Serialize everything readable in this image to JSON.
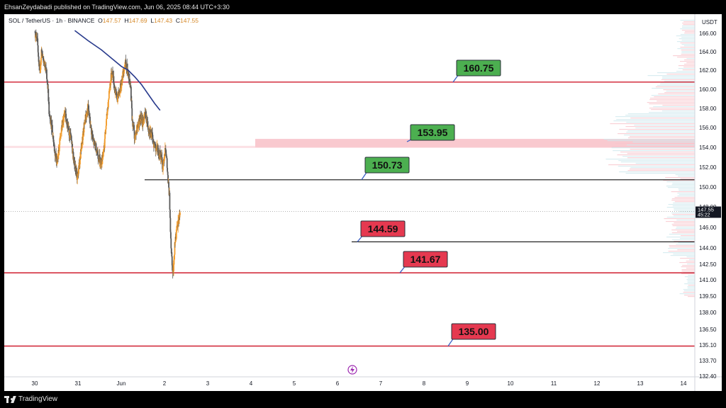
{
  "header": {
    "publish_line": "EhsanZeydabadi published on TradingView.com, Jun 06, 2025 08:44 UTC+3:30"
  },
  "legend": {
    "symbol": "SOL / TetherUS · 1h · BINANCE",
    "o_key": "O",
    "o": "147.57",
    "h_key": "H",
    "h": "147.69",
    "l_key": "L",
    "l": "147.43",
    "c_key": "C",
    "c": "147.55"
  },
  "footer": {
    "brand": "TradingView"
  },
  "colors": {
    "bull": "#f39c2b",
    "bear": "#5a5a5a",
    "ma": "#283a8c",
    "support_red": "#d32f3f",
    "zone": "#f9c9cf",
    "green_box": "#4caf50",
    "red_box": "#e53950"
  },
  "chart_data": {
    "type": "candlestick",
    "symbol": "SOL / TetherUS",
    "interval": "1h",
    "exchange": "BINANCE",
    "price_unit": "USDT",
    "x_tick_labels": [
      "30",
      "31",
      "Jun",
      "2",
      "3",
      "4",
      "5",
      "6",
      "7",
      "8",
      "9",
      "10",
      "11",
      "12",
      "13",
      "14"
    ],
    "y_tick_labels": [
      "166.00",
      "164.00",
      "162.00",
      "160.00",
      "158.00",
      "156.00",
      "154.00",
      "152.00",
      "150.00",
      "148.00",
      "146.00",
      "144.00",
      "142.50",
      "141.00",
      "139.50",
      "138.00",
      "136.50",
      "135.10",
      "133.70",
      "132.40"
    ],
    "y_range": [
      132.4,
      167.0
    ],
    "x_range_days": [
      "May 30",
      "Jun 14"
    ],
    "last_price": "147.55",
    "countdown": "45:22",
    "levels": [
      {
        "label": "160.75",
        "value": 160.75,
        "kind": "resistance",
        "line": "red"
      },
      {
        "label": "153.95",
        "value": 153.95,
        "kind": "resistance-zone",
        "line": "zone"
      },
      {
        "label": "150.73",
        "value": 150.73,
        "kind": "resistance",
        "line": "black"
      },
      {
        "label": "144.59",
        "value": 144.59,
        "kind": "support",
        "line": "black"
      },
      {
        "label": "141.67",
        "value": 141.67,
        "kind": "support",
        "line": "red"
      },
      {
        "label": "135.00",
        "value": 135.0,
        "kind": "support",
        "line": "red"
      }
    ],
    "price_path_approx": [
      [
        0,
        166.2
      ],
      [
        2,
        165.0
      ],
      [
        4,
        161.5
      ],
      [
        5,
        164.2
      ],
      [
        7,
        163.0
      ],
      [
        9,
        161.5
      ],
      [
        10,
        159.8
      ],
      [
        11,
        157.0
      ],
      [
        13,
        156.0
      ],
      [
        15,
        153.5
      ],
      [
        17,
        152.5
      ],
      [
        19,
        154.8
      ],
      [
        21,
        156.5
      ],
      [
        23,
        157.5
      ],
      [
        25,
        156.0
      ],
      [
        27,
        155.0
      ],
      [
        29,
        153.0
      ],
      [
        31,
        151.5
      ],
      [
        32,
        150.8
      ],
      [
        34,
        153.0
      ],
      [
        36,
        155.0
      ],
      [
        38,
        157.0
      ],
      [
        40,
        158.0
      ],
      [
        42,
        156.0
      ],
      [
        44,
        154.5
      ],
      [
        46,
        154.0
      ],
      [
        48,
        153.0
      ],
      [
        50,
        152.5
      ],
      [
        52,
        154.0
      ],
      [
        54,
        157.0
      ],
      [
        56,
        160.0
      ],
      [
        58,
        162.0
      ],
      [
        60,
        160.0
      ],
      [
        62,
        159.0
      ],
      [
        64,
        160.0
      ],
      [
        66,
        161.5
      ],
      [
        68,
        163.0
      ],
      [
        70,
        161.5
      ],
      [
        72,
        160.0
      ],
      [
        73,
        157.0
      ],
      [
        75,
        155.0
      ],
      [
        77,
        156.0
      ],
      [
        79,
        157.0
      ],
      [
        81,
        156.5
      ],
      [
        83,
        157.5
      ],
      [
        85,
        156.0
      ],
      [
        87,
        155.5
      ],
      [
        89,
        154.5
      ],
      [
        91,
        154.0
      ],
      [
        93,
        153.5
      ],
      [
        95,
        153.0
      ],
      [
        96,
        152.0
      ],
      [
        98,
        154.2
      ],
      [
        99,
        152.5
      ],
      [
        100,
        150.5
      ],
      [
        101,
        149.0
      ],
      [
        102,
        145.0
      ],
      [
        103,
        142.5
      ],
      [
        104,
        141.8
      ],
      [
        105,
        144.5
      ],
      [
        106,
        145.3
      ],
      [
        107,
        146.0
      ],
      [
        108,
        146.8
      ],
      [
        109,
        147.5
      ]
    ],
    "ma_path_approx": [
      [
        30,
        166.3
      ],
      [
        40,
        165.2
      ],
      [
        50,
        164.2
      ],
      [
        60,
        163.0
      ],
      [
        65,
        162.4
      ],
      [
        70,
        162.0
      ],
      [
        75,
        161.3
      ],
      [
        80,
        160.5
      ],
      [
        85,
        159.5
      ],
      [
        90,
        158.5
      ],
      [
        94,
        157.8
      ]
    ]
  }
}
